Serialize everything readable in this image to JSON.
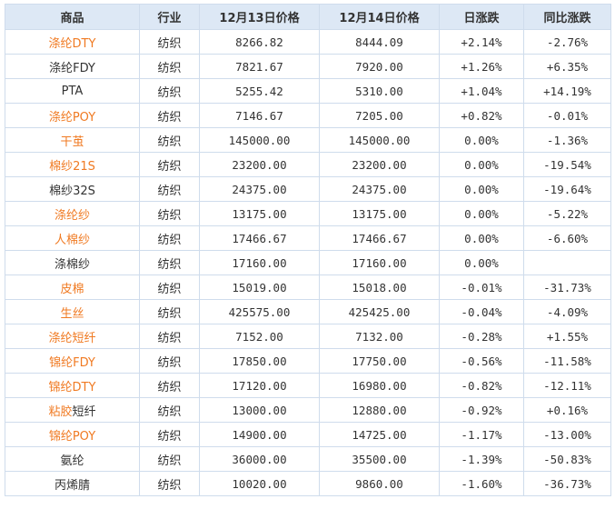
{
  "headers": [
    "商品",
    "行业",
    "12月13日价格",
    "12月14日价格",
    "日涨跌",
    "同比涨跌"
  ],
  "colors": {
    "link": "#f07a22",
    "up": "#ff0000",
    "down": "#008800",
    "header_bg": "#dde8f5",
    "border": "#cfdcec"
  },
  "rows": [
    {
      "name": "涤纶DTY",
      "link": true,
      "industry": "纺织",
      "p13": "8266.82",
      "p14": "8444.09",
      "day": "+2.14%",
      "yoy": "-2.76%"
    },
    {
      "name": "涤纶FDY",
      "link": false,
      "industry": "纺织",
      "p13": "7821.67",
      "p14": "7920.00",
      "day": "+1.26%",
      "yoy": "+6.35%"
    },
    {
      "name": "PTA",
      "link": false,
      "industry": "纺织",
      "p13": "5255.42",
      "p14": "5310.00",
      "day": "+1.04%",
      "yoy": "+14.19%"
    },
    {
      "name": "涤纶POY",
      "link": true,
      "industry": "纺织",
      "p13": "7146.67",
      "p14": "7205.00",
      "day": "+0.82%",
      "yoy": "-0.01%"
    },
    {
      "name": "干茧",
      "link": true,
      "industry": "纺织",
      "p13": "145000.00",
      "p14": "145000.00",
      "day": "0.00%",
      "yoy": "-1.36%"
    },
    {
      "name": "棉纱21S",
      "link": true,
      "industry": "纺织",
      "p13": "23200.00",
      "p14": "23200.00",
      "day": "0.00%",
      "yoy": "-19.54%"
    },
    {
      "name": "棉纱32S",
      "link": false,
      "industry": "纺织",
      "p13": "24375.00",
      "p14": "24375.00",
      "day": "0.00%",
      "yoy": "-19.64%"
    },
    {
      "name": "涤纶纱",
      "link": true,
      "industry": "纺织",
      "p13": "13175.00",
      "p14": "13175.00",
      "day": "0.00%",
      "yoy": "-5.22%"
    },
    {
      "name": "人棉纱",
      "link": true,
      "industry": "纺织",
      "p13": "17466.67",
      "p14": "17466.67",
      "day": "0.00%",
      "yoy": "-6.60%"
    },
    {
      "name": "涤棉纱",
      "link": false,
      "industry": "纺织",
      "p13": "17160.00",
      "p14": "17160.00",
      "day": "0.00%",
      "yoy": ""
    },
    {
      "name": "皮棉",
      "link": true,
      "industry": "纺织",
      "p13": "15019.00",
      "p14": "15018.00",
      "day": "-0.01%",
      "yoy": "-31.73%"
    },
    {
      "name": "生丝",
      "link": true,
      "industry": "纺织",
      "p13": "425575.00",
      "p14": "425425.00",
      "day": "-0.04%",
      "yoy": "-4.09%"
    },
    {
      "name": "涤纶短纤",
      "link": true,
      "industry": "纺织",
      "p13": "7152.00",
      "p14": "7132.00",
      "day": "-0.28%",
      "yoy": "+1.55%"
    },
    {
      "name": "锦纶FDY",
      "link": true,
      "industry": "纺织",
      "p13": "17850.00",
      "p14": "17750.00",
      "day": "-0.56%",
      "yoy": "-11.58%"
    },
    {
      "name": "锦纶DTY",
      "link": true,
      "industry": "纺织",
      "p13": "17120.00",
      "p14": "16980.00",
      "day": "-0.82%",
      "yoy": "-12.11%"
    },
    {
      "name_parts": [
        "粘胶",
        "短纤"
      ],
      "name": "粘胶短纤",
      "link": "partial",
      "industry": "纺织",
      "p13": "13000.00",
      "p14": "12880.00",
      "day": "-0.92%",
      "yoy": "+0.16%"
    },
    {
      "name": "锦纶POY",
      "link": true,
      "industry": "纺织",
      "p13": "14900.00",
      "p14": "14725.00",
      "day": "-1.17%",
      "yoy": "-13.00%"
    },
    {
      "name": "氨纶",
      "link": false,
      "industry": "纺织",
      "p13": "36000.00",
      "p14": "35500.00",
      "day": "-1.39%",
      "yoy": "-50.83%"
    },
    {
      "name": "丙烯腈",
      "link": false,
      "industry": "纺织",
      "p13": "10020.00",
      "p14": "9860.00",
      "day": "-1.60%",
      "yoy": "-36.73%"
    }
  ]
}
